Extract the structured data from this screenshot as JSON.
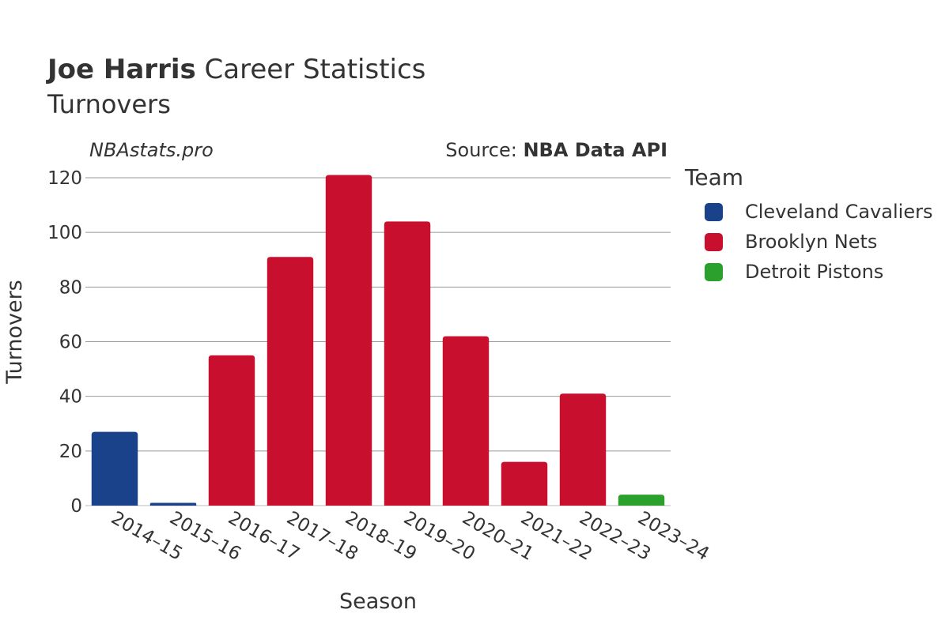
{
  "header": {
    "title_bold": "Joe Harris",
    "title_rest": " Career Statistics",
    "subtitle": "Turnovers"
  },
  "watermark": "NBAstats.pro",
  "source": {
    "prefix": "Source: ",
    "name": "NBA Data API"
  },
  "legend": {
    "title": "Team",
    "items": [
      {
        "label": "Cleveland Cavaliers",
        "color": "#1a428a"
      },
      {
        "label": "Brooklyn Nets",
        "color": "#c8102e"
      },
      {
        "label": "Detroit Pistons",
        "color": "#2ca02c"
      }
    ]
  },
  "chart_data": {
    "type": "bar",
    "xlabel": "Season",
    "ylabel": "Turnovers",
    "ylim": [
      0,
      120
    ],
    "yticks": [
      0,
      20,
      40,
      60,
      80,
      100,
      120
    ],
    "grid": true,
    "legend_position": "right",
    "categories": [
      "2014–15",
      "2015–16",
      "2016–17",
      "2017–18",
      "2018–19",
      "2019–20",
      "2020–21",
      "2021–22",
      "2022–23",
      "2023–24"
    ],
    "values": [
      27,
      1,
      55,
      91,
      121,
      104,
      62,
      16,
      41,
      4
    ],
    "teams": [
      "Cleveland Cavaliers",
      "Cleveland Cavaliers",
      "Brooklyn Nets",
      "Brooklyn Nets",
      "Brooklyn Nets",
      "Brooklyn Nets",
      "Brooklyn Nets",
      "Brooklyn Nets",
      "Brooklyn Nets",
      "Detroit Pistons"
    ]
  }
}
